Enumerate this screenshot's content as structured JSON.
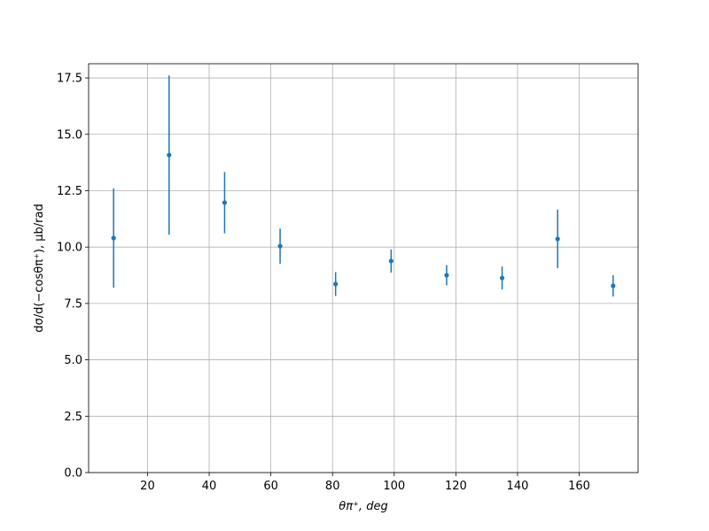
{
  "chart_data": {
    "type": "errorbar",
    "xlabel": "θπ⁺, deg",
    "ylabel": "dσ/d(−cosθπ⁺), μb/rad",
    "x": [
      9,
      27,
      45,
      63,
      81,
      99,
      117,
      135,
      153,
      171
    ],
    "series": [
      {
        "color": "#1f77b4",
        "values": [
          10.4,
          14.08,
          11.97,
          10.04,
          8.36,
          9.38,
          8.75,
          8.63,
          10.36,
          8.28
        ],
        "errors": [
          2.2,
          3.53,
          1.36,
          0.78,
          0.53,
          0.51,
          0.45,
          0.51,
          1.3,
          0.47
        ]
      }
    ],
    "xlim": [
      0.9,
      179.1
    ],
    "ylim": [
      0,
      18.13
    ],
    "xticks": [
      20,
      40,
      60,
      80,
      100,
      120,
      140,
      160
    ],
    "yticks": [
      {
        "value": 0,
        "label": "0.0"
      },
      {
        "value": 2.5,
        "label": "2.5"
      },
      {
        "value": 5,
        "label": "5.0"
      },
      {
        "value": 7.5,
        "label": "7.5"
      },
      {
        "value": 10,
        "label": "10.0"
      },
      {
        "value": 12.5,
        "label": "12.5"
      },
      {
        "value": 15,
        "label": "15.0"
      },
      {
        "value": 17.5,
        "label": "17.5"
      }
    ],
    "grid": true
  }
}
